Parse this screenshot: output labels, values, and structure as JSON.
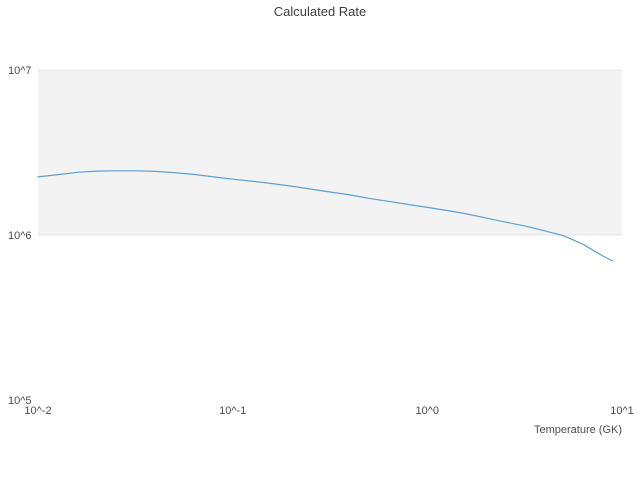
{
  "page": {
    "background_color": "#ffffff"
  },
  "chart_data": {
    "type": "line",
    "title": "Calculated Rate",
    "xlabel": "Temperature (GK)",
    "ylabel": "",
    "x_scale": "log",
    "y_scale": "log",
    "xlim": [
      0.01,
      10
    ],
    "ylim": [
      100000,
      10000000
    ],
    "grid": "off",
    "legend": "none",
    "text_color": "#4d4d4d",
    "x_ticks": [
      {
        "label": "10^-2",
        "value": 0.01
      },
      {
        "label": "10^-1",
        "value": 0.1
      },
      {
        "label": "10^0",
        "value": 1
      },
      {
        "label": "10^1",
        "value": 10
      }
    ],
    "y_ticks": [
      {
        "label": "10^5",
        "value": 100000
      },
      {
        "label": "10^6",
        "value": 1000000
      },
      {
        "label": "10^7",
        "value": 10000000
      }
    ],
    "band": {
      "from": 1000000,
      "to": 10000000,
      "fill_color": "#f3f3f3",
      "edge_color": "#e6e6e6"
    },
    "series": [
      {
        "name": "calculated-rate",
        "color": "#5ca0d3",
        "x": [
          0.01,
          0.013,
          0.016,
          0.02,
          0.025,
          0.032,
          0.04,
          0.05,
          0.063,
          0.08,
          0.1,
          0.13,
          0.16,
          0.2,
          0.25,
          0.32,
          0.4,
          0.5,
          0.63,
          0.8,
          1.0,
          1.3,
          1.6,
          2.0,
          2.5,
          3.2,
          4.0,
          5.0,
          6.3,
          7.9,
          8.9
        ],
        "y": [
          2250000,
          2330000,
          2400000,
          2440000,
          2450000,
          2450000,
          2430000,
          2390000,
          2330000,
          2250000,
          2180000,
          2110000,
          2050000,
          1980000,
          1900000,
          1820000,
          1750000,
          1670000,
          1600000,
          1530000,
          1470000,
          1400000,
          1340000,
          1270000,
          1200000,
          1130000,
          1060000,
          990000,
          880000,
          750000,
          700000
        ]
      }
    ]
  }
}
